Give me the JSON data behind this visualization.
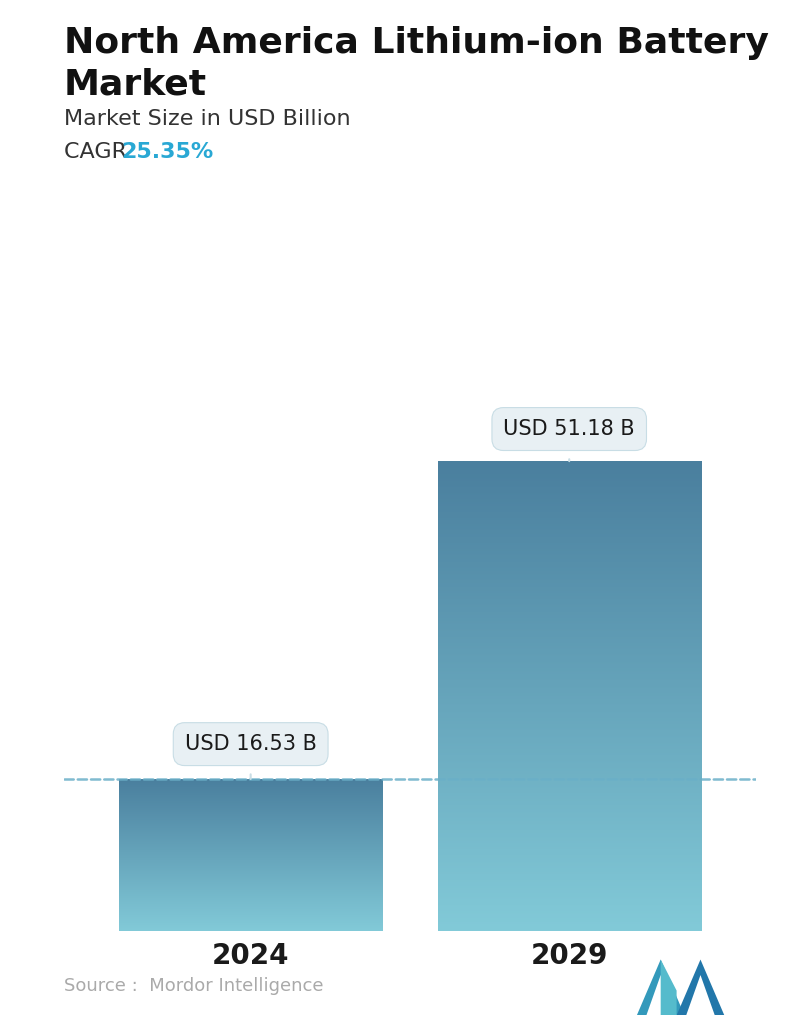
{
  "title_line1": "North America Lithium-ion Battery",
  "title_line2": "Market",
  "subtitle": "Market Size in USD Billion",
  "cagr_label": "CAGR ",
  "cagr_value": "25.35%",
  "cagr_color": "#29a8d4",
  "categories": [
    "2024",
    "2029"
  ],
  "values": [
    16.53,
    51.18
  ],
  "bar_labels": [
    "USD 16.53 B",
    "USD 51.18 B"
  ],
  "bar_color_top": "#4a7f9e",
  "bar_color_bottom": "#82cad8",
  "dashed_line_color": "#6aafc8",
  "dashed_line_style": "--",
  "background_color": "#ffffff",
  "tooltip_bg": "#e8f0f4",
  "tooltip_edge": "#c8dde5",
  "source_text": "Source :  Mordor Intelligence",
  "source_color": "#aaaaaa",
  "title_fontsize": 26,
  "subtitle_fontsize": 16,
  "cagr_fontsize": 16,
  "tick_fontsize": 20,
  "label_fontsize": 15,
  "source_fontsize": 13,
  "ylim": [
    0,
    62
  ],
  "bar_positions": [
    0.27,
    0.73
  ],
  "bar_width": 0.38
}
